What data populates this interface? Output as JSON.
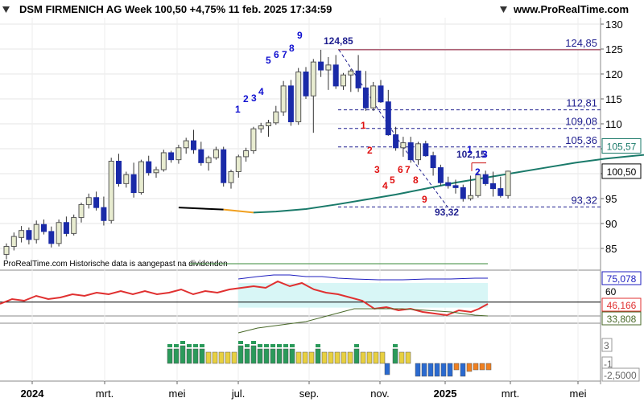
{
  "header": {
    "title": "DSM FIRMENICH AG Week 100,50 +4,75% 11 feb. 2025 17:34:59",
    "source": "www.ProRealTime.com"
  },
  "price_panel": {
    "note": "ProRealTime.com Historische data is aangepast na dividenden",
    "peak_label": "124,85",
    "trough_label": "93,32",
    "pivot_label": "102,15",
    "levels": [
      {
        "label": "124,85",
        "value": 124.85
      },
      {
        "label": "112,81",
        "value": 112.81
      },
      {
        "label": "109,08",
        "value": 109.08
      },
      {
        "label": "105,36",
        "value": 105.36
      },
      {
        "label": "93,32",
        "value": 93.32
      }
    ],
    "boxes": [
      {
        "label": "105,57",
        "value": 105.57,
        "color": "#1a7a6a"
      },
      {
        "label": "100,50",
        "value": 100.5,
        "color": "#000000"
      }
    ],
    "yticks": [
      "130",
      "125",
      "120",
      "115",
      "110",
      "105",
      "100",
      "95",
      "90",
      "85"
    ]
  },
  "indicator_panel": {
    "boxes": [
      {
        "label": "75,078",
        "color": "#1f1fbf"
      },
      {
        "label": "60",
        "color": "#000000"
      },
      {
        "label": "46,166",
        "color": "#e03030"
      },
      {
        "label": "33,808",
        "color": "#4a6a2a"
      }
    ]
  },
  "histogram_panel": {
    "boxes": [
      {
        "label": "3"
      },
      {
        "label": "-1"
      },
      {
        "label": "-2,5000"
      }
    ]
  },
  "x_axis": {
    "labels": [
      "2024",
      "mrt.",
      "mei",
      "jul.",
      "sep.",
      "nov.",
      "2025",
      "mrt.",
      "mei"
    ]
  },
  "counts": {
    "blue_up": [
      "1",
      "2",
      "3",
      "4",
      "5",
      "6",
      "7",
      "8",
      "9"
    ],
    "red_down": [
      "1",
      "2",
      "3",
      "4",
      "5",
      "6",
      "7",
      "8",
      "9"
    ],
    "blue_new": [
      "1",
      "2",
      "3"
    ]
  },
  "chart_data": {
    "type": "candlestick",
    "title": "DSM FIRMENICH AG Week 100,50 +4,75% 11 feb. 2025 17:34:59",
    "ylim": [
      81,
      132
    ],
    "x_labels": [
      "2024",
      "mrt.",
      "mei",
      "jul.",
      "sep.",
      "nov.",
      "2025",
      "mrt.",
      "mei"
    ],
    "candles": [
      [
        83.8,
        86.0,
        82.8,
        85.4
      ],
      [
        85.4,
        88.2,
        84.6,
        87.4
      ],
      [
        87.2,
        89.5,
        86.2,
        88.6
      ],
      [
        88.6,
        89.2,
        85.8,
        86.8
      ],
      [
        86.8,
        90.6,
        86.0,
        89.8
      ],
      [
        89.8,
        90.8,
        87.8,
        88.4
      ],
      [
        88.4,
        89.4,
        85.2,
        86.0
      ],
      [
        86.0,
        90.8,
        85.4,
        90.2
      ],
      [
        90.2,
        91.4,
        87.4,
        88.0
      ],
      [
        88.0,
        91.8,
        87.6,
        91.2
      ],
      [
        91.2,
        94.2,
        90.2,
        93.8
      ],
      [
        93.8,
        96.0,
        93.0,
        95.2
      ],
      [
        95.2,
        96.4,
        92.6,
        93.2
      ],
      [
        93.2,
        95.4,
        89.6,
        90.6
      ],
      [
        90.6,
        103.2,
        90.0,
        102.5
      ],
      [
        102.5,
        104.0,
        97.4,
        98.0
      ],
      [
        98.0,
        100.4,
        97.2,
        99.8
      ],
      [
        99.8,
        102.2,
        95.2,
        96.2
      ],
      [
        96.2,
        102.8,
        95.8,
        102.4
      ],
      [
        102.4,
        103.6,
        99.6,
        100.2
      ],
      [
        100.2,
        101.4,
        99.2,
        100.8
      ],
      [
        100.8,
        104.8,
        100.4,
        104.2
      ],
      [
        104.2,
        104.6,
        102.2,
        102.8
      ],
      [
        102.8,
        105.8,
        102.0,
        105.2
      ],
      [
        105.2,
        107.2,
        104.0,
        106.6
      ],
      [
        106.6,
        108.8,
        104.0,
        104.8
      ],
      [
        104.8,
        106.4,
        101.6,
        102.2
      ],
      [
        102.2,
        103.6,
        100.6,
        103.2
      ],
      [
        103.2,
        105.4,
        102.8,
        104.8
      ],
      [
        104.8,
        105.4,
        97.4,
        98.2
      ],
      [
        98.2,
        100.8,
        97.0,
        100.4
      ],
      [
        100.4,
        103.8,
        99.2,
        103.4
      ],
      [
        103.4,
        105.2,
        102.4,
        104.6
      ],
      [
        104.6,
        109.4,
        104.0,
        109.0
      ],
      [
        109.0,
        110.2,
        108.2,
        109.6
      ],
      [
        109.6,
        110.8,
        107.4,
        110.2
      ],
      [
        110.2,
        113.6,
        109.8,
        112.4
      ],
      [
        112.4,
        118.6,
        111.6,
        117.6
      ],
      [
        117.6,
        118.8,
        109.6,
        110.4
      ],
      [
        110.4,
        121.2,
        109.8,
        120.4
      ],
      [
        120.4,
        121.4,
        115.0,
        115.6
      ],
      [
        115.6,
        123.0,
        108.2,
        122.4
      ],
      [
        122.4,
        124.85,
        119.4,
        120.8
      ],
      [
        120.8,
        123.4,
        116.8,
        121.8
      ],
      [
        121.8,
        123.8,
        117.0,
        117.6
      ],
      [
        117.6,
        120.2,
        116.8,
        119.8
      ],
      [
        119.8,
        121.0,
        116.4,
        120.6
      ],
      [
        120.6,
        123.8,
        116.4,
        117.2
      ],
      [
        117.2,
        120.6,
        112.6,
        113.2
      ],
      [
        113.2,
        118.4,
        112.6,
        117.6
      ],
      [
        117.6,
        118.8,
        114.2,
        114.4
      ],
      [
        114.4,
        116.8,
        107.6,
        107.8
      ],
      [
        107.8,
        109.4,
        104.6,
        105.2
      ],
      [
        105.2,
        107.4,
        103.4,
        106.2
      ],
      [
        106.2,
        107.4,
        102.2,
        102.8
      ],
      [
        102.8,
        106.4,
        101.8,
        106.0
      ],
      [
        106.0,
        106.6,
        103.4,
        103.6
      ],
      [
        103.6,
        104.4,
        99.6,
        101.2
      ],
      [
        101.2,
        101.8,
        97.6,
        98.2
      ],
      [
        98.2,
        99.4,
        97.0,
        97.6
      ],
      [
        97.6,
        98.8,
        96.0,
        97.2
      ],
      [
        97.2,
        97.8,
        94.4,
        95.0
      ],
      [
        95.0,
        99.6,
        94.6,
        95.6
      ],
      [
        95.6,
        100.2,
        95.2,
        99.8
      ],
      [
        99.8,
        100.6,
        97.6,
        98.0
      ],
      [
        98.0,
        100.4,
        95.4,
        97.0
      ],
      [
        97.0,
        99.4,
        95.2,
        95.6
      ],
      [
        95.6,
        100.6,
        95.0,
        100.5
      ]
    ],
    "moving_average": [
      [
        23,
        93.2
      ],
      [
        29,
        92.8
      ],
      [
        33,
        92.2
      ],
      [
        36,
        92.4
      ],
      [
        40,
        92.9
      ],
      [
        44,
        93.8
      ],
      [
        48,
        94.8
      ],
      [
        52,
        95.8
      ],
      [
        56,
        97.0
      ],
      [
        60,
        98.2
      ],
      [
        64,
        99.2
      ],
      [
        68,
        100.2
      ],
      [
        72,
        101.2
      ],
      [
        76,
        102.2
      ],
      [
        80,
        103.0
      ],
      [
        84,
        103.6
      ],
      [
        88,
        104.2
      ],
      [
        92,
        104.8
      ],
      [
        96,
        105.1
      ],
      [
        100,
        105.3
      ],
      [
        104,
        105.5
      ],
      [
        108,
        105.57
      ]
    ],
    "levels": [
      124.85,
      112.81,
      109.08,
      105.36,
      93.32
    ],
    "indicator": {
      "series": [
        {
          "name": "75,078",
          "color": "#1f1fbf"
        },
        {
          "name": "46,166",
          "color": "#e03030"
        },
        {
          "name": "33,808",
          "color": "#4a6a2a"
        }
      ],
      "reference": 60
    }
  }
}
